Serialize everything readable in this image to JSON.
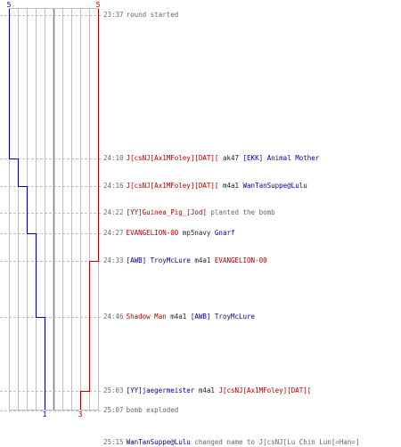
{
  "colors": {
    "t_team": "#b00000",
    "ct_team": "#000099",
    "grid": "#c0c0c0",
    "center_line": "#808080",
    "tick_dash": "#aaaaaa"
  },
  "score": {
    "ct_start": "5",
    "tr_start": "5",
    "ct_end": "1",
    "tr_end": "3"
  },
  "events": [
    {
      "time": "23:37",
      "parts": [
        {
          "text": "round started",
          "cls": "ev"
        }
      ]
    },
    {
      "time": "24:10",
      "parts": [
        {
          "text": "J[csNJ[Ax1MFoley][DAT][",
          "cls": "tr"
        },
        {
          "text": "ak47",
          "cls": "wp"
        },
        {
          "text": "[EKK] Animal Mother",
          "cls": "ct"
        }
      ]
    },
    {
      "time": "24:16",
      "parts": [
        {
          "text": "J[csNJ[Ax1MFoley][DAT][",
          "cls": "tr"
        },
        {
          "text": "m4a1",
          "cls": "wp"
        },
        {
          "text": "WanTanSuppe@Lulu",
          "cls": "ct"
        }
      ]
    },
    {
      "time": "24:22",
      "parts": [
        {
          "text": "[YY]Guinea_Pig_[Jod]",
          "cls": "tr"
        },
        {
          "text": "planted the bomb",
          "cls": "ev"
        }
      ]
    },
    {
      "time": "24:27",
      "parts": [
        {
          "text": "EVANGELION-00",
          "cls": "tr"
        },
        {
          "text": "mp5navy",
          "cls": "wp"
        },
        {
          "text": "Gnarf",
          "cls": "ct"
        }
      ]
    },
    {
      "time": "24:33",
      "parts": [
        {
          "text": "[AWB] TroyMcLure",
          "cls": "ct"
        },
        {
          "text": "m4a1",
          "cls": "wp"
        },
        {
          "text": "EVANGELION-00",
          "cls": "tr"
        }
      ]
    },
    {
      "time": "24:46",
      "parts": [
        {
          "text": "Shadow Man",
          "cls": "tr"
        },
        {
          "text": "m4a1",
          "cls": "wp"
        },
        {
          "text": "[AWB] TroyMcLure",
          "cls": "ct"
        }
      ]
    },
    {
      "time": "25:03",
      "parts": [
        {
          "text": "[YY]jaegermeister",
          "cls": "ct"
        },
        {
          "text": "m4a1",
          "cls": "wp"
        },
        {
          "text": "J[csNJ[Ax1MFoley][DAT][",
          "cls": "tr"
        }
      ]
    },
    {
      "time": "25:07",
      "parts": [
        {
          "text": "bomb exploded",
          "cls": "ev"
        }
      ]
    },
    {
      "time": "25:15",
      "parts": [
        {
          "text": "WanTanSuppe@Lulu",
          "cls": "ct"
        },
        {
          "text": "changed name to J[csNJ[Lu Chin Lun[=Han=]",
          "cls": "ev"
        }
      ]
    }
  ]
}
